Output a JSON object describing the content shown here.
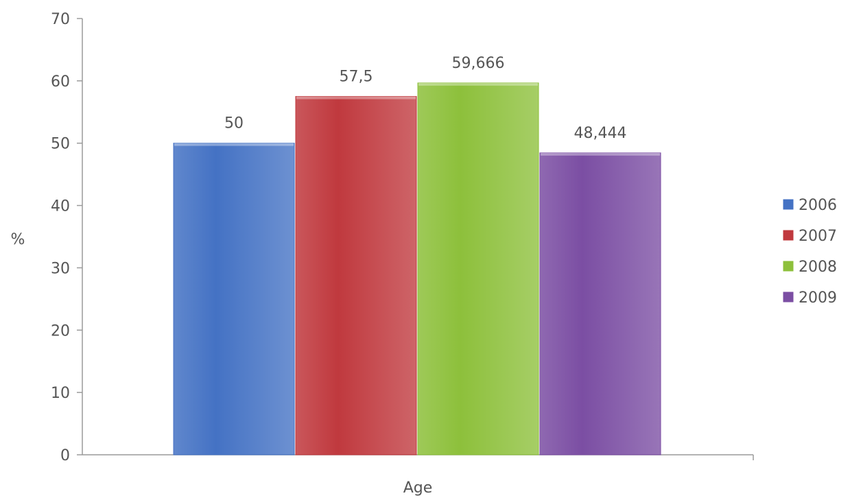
{
  "chart_data": {
    "type": "bar",
    "categories": [
      ""
    ],
    "series": [
      {
        "name": "2006",
        "values": [
          50
        ],
        "label": "50",
        "color": "#4472C4"
      },
      {
        "name": "2007",
        "values": [
          57.5
        ],
        "label": "57,5",
        "color": "#C0393E"
      },
      {
        "name": "2008",
        "values": [
          59.666
        ],
        "label": "59,666",
        "color": "#8DC03B"
      },
      {
        "name": "2009",
        "values": [
          48.444
        ],
        "label": "48,444",
        "color": "#7B4EA3"
      }
    ],
    "title": "",
    "xlabel": "Age",
    "ylabel": "%",
    "ylim": [
      0,
      70
    ],
    "yticks": [
      0,
      10,
      20,
      30,
      40,
      50,
      60,
      70
    ],
    "yticklabels": [
      "0",
      "10",
      "20",
      "30",
      "40",
      "50",
      "60",
      "70"
    ],
    "grid": false,
    "legend_position": "right"
  }
}
